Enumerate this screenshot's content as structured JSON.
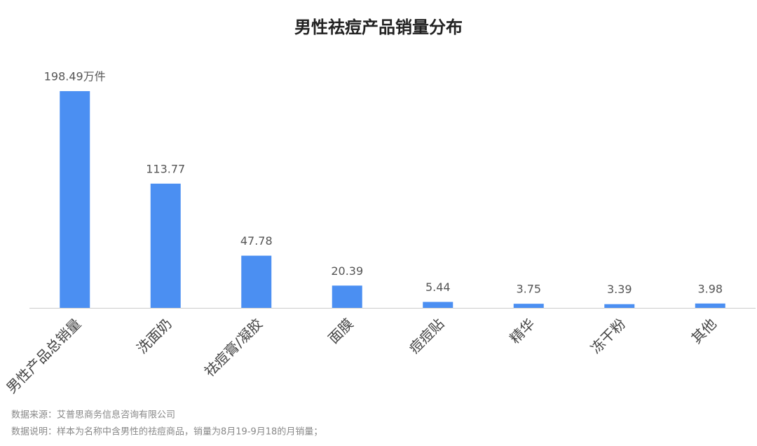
{
  "chart_data": {
    "type": "bar",
    "title": "男性祛痘产品销量分布",
    "categories": [
      "男性产品总销量",
      "洗面奶",
      "祛痘膏/凝胶",
      "面膜",
      "痘痘贴",
      "精华",
      "冻干粉",
      "其他"
    ],
    "values": [
      198.49,
      113.77,
      47.78,
      20.39,
      5.44,
      3.75,
      3.39,
      3.98
    ],
    "value_labels": [
      "198.49万件",
      "113.77",
      "47.78",
      "20.39",
      "5.44",
      "3.75",
      "3.39",
      "3.98"
    ],
    "color": "#4b8ff2",
    "ylim": [
      0,
      200
    ],
    "notes": [
      "数据来源：艾普思商务信息咨询有限公司",
      "数据说明：样本为名称中含男性的祛痘商品，销量为8月19-9月18的月销量；"
    ]
  }
}
